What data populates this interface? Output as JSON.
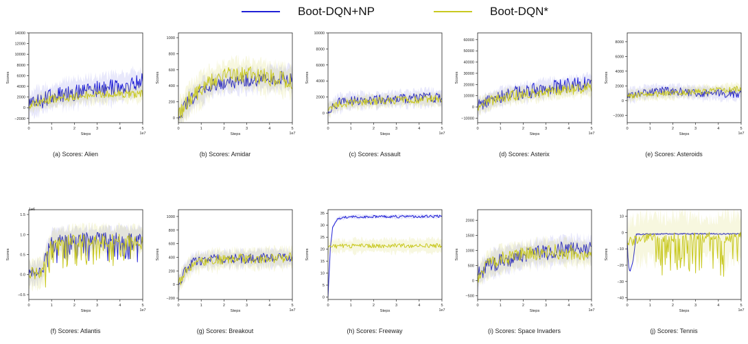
{
  "legend": {
    "np_label": "Boot-DQN+NP",
    "base_label": "Boot-DQN*",
    "np_color": "#1f1fd6",
    "base_color": "#c8c81e"
  },
  "chart_data": [
    {
      "type": "line",
      "caption": "(a) Scores: Alien",
      "xlabel": "Steps",
      "ylabel": "Scores",
      "xlim": [
        0,
        5
      ],
      "x_offset_label": "1e7",
      "y_offset_label": "",
      "ylim": [
        -2800,
        14000
      ],
      "yticks": [
        -2000,
        0,
        2000,
        4000,
        6000,
        8000,
        10000,
        12000,
        14000
      ],
      "ytick_labels": [
        "−2000",
        "0",
        "2000",
        "4000",
        "6000",
        "8000",
        "10000",
        "12000",
        "14000"
      ],
      "xticks": [
        0,
        1,
        2,
        3,
        4,
        5
      ],
      "series": [
        {
          "name": "Boot-DQN+NP",
          "x": [
            0,
            0.5,
            1,
            1.5,
            2,
            2.5,
            3,
            3.5,
            4,
            4.5,
            5
          ],
          "y": [
            400,
            1400,
            2000,
            2600,
            2900,
            3200,
            3400,
            3700,
            3900,
            4400,
            4800
          ],
          "spread": 2300,
          "noise": 1000
        },
        {
          "name": "Boot-DQN*",
          "x": [
            0,
            0.5,
            1,
            1.5,
            2,
            2.5,
            3,
            3.5,
            4,
            4.5,
            5
          ],
          "y": [
            400,
            1200,
            1600,
            1900,
            2100,
            2300,
            2400,
            2500,
            2500,
            2600,
            2700
          ],
          "spread": 1300,
          "noise": 500
        }
      ]
    },
    {
      "type": "line",
      "caption": "(b) Scores: Amidar",
      "xlabel": "Steps",
      "ylabel": "Scores",
      "xlim": [
        0,
        5
      ],
      "x_offset_label": "1e7",
      "y_offset_label": "",
      "ylim": [
        -60,
        1060
      ],
      "yticks": [
        0,
        200,
        400,
        600,
        800,
        1000
      ],
      "ytick_labels": [
        "0",
        "200",
        "400",
        "600",
        "800",
        "1000"
      ],
      "xticks": [
        0,
        1,
        2,
        3,
        4,
        5
      ],
      "series": [
        {
          "name": "Boot-DQN+NP",
          "x": [
            0,
            0.5,
            1,
            1.5,
            2,
            2.5,
            3,
            3.5,
            4,
            4.5,
            5
          ],
          "y": [
            10,
            220,
            330,
            410,
            440,
            460,
            470,
            480,
            490,
            500,
            500
          ],
          "spread": 130,
          "noise": 55
        },
        {
          "name": "Boot-DQN*",
          "x": [
            0,
            0.5,
            1,
            1.5,
            2,
            2.5,
            3,
            3.5,
            4,
            4.5,
            5
          ],
          "y": [
            10,
            250,
            360,
            460,
            520,
            550,
            540,
            520,
            500,
            480,
            460
          ],
          "spread": 170,
          "noise": 65
        }
      ]
    },
    {
      "type": "line",
      "caption": "(c) Scores: Assault",
      "xlabel": "Steps",
      "ylabel": "Scores",
      "xlim": [
        0,
        5
      ],
      "x_offset_label": "1e7",
      "y_offset_label": "",
      "ylim": [
        -1200,
        10000
      ],
      "yticks": [
        0,
        2000,
        4000,
        6000,
        8000,
        10000
      ],
      "ytick_labels": [
        "0",
        "2000",
        "4000",
        "6000",
        "8000",
        "10000"
      ],
      "xticks": [
        0,
        1,
        2,
        3,
        4,
        5
      ],
      "series": [
        {
          "name": "Boot-DQN+NP",
          "x": [
            0,
            0.5,
            1,
            1.5,
            2,
            2.5,
            3,
            3.5,
            4,
            4.5,
            5
          ],
          "y": [
            500,
            1300,
            1500,
            1600,
            1600,
            1700,
            1800,
            1800,
            1900,
            2000,
            1800
          ],
          "spread": 900,
          "noise": 380
        },
        {
          "name": "Boot-DQN*",
          "x": [
            0,
            0.5,
            1,
            1.5,
            2,
            2.5,
            3,
            3.5,
            4,
            4.5,
            5
          ],
          "y": [
            400,
            1100,
            1300,
            1400,
            1500,
            1500,
            1600,
            1600,
            1700,
            1700,
            1700
          ],
          "spread": 700,
          "noise": 300
        }
      ]
    },
    {
      "type": "line",
      "caption": "(d) Scores: Asterix",
      "xlabel": "Steps",
      "ylabel": "Scores",
      "xlim": [
        0,
        5
      ],
      "x_offset_label": "1e7",
      "y_offset_label": "",
      "ylim": [
        -14000,
        66000
      ],
      "yticks": [
        -10000,
        0,
        10000,
        20000,
        30000,
        40000,
        50000,
        60000
      ],
      "ytick_labels": [
        "−10000",
        "0",
        "10000",
        "20000",
        "30000",
        "40000",
        "50000",
        "60000"
      ],
      "xticks": [
        0,
        1,
        2,
        3,
        4,
        5
      ],
      "series": [
        {
          "name": "Boot-DQN+NP",
          "x": [
            0,
            0.5,
            1,
            1.5,
            2,
            2.5,
            3,
            3.5,
            4,
            4.5,
            5
          ],
          "y": [
            500,
            5000,
            9000,
            12000,
            13000,
            15000,
            17000,
            18000,
            19000,
            20000,
            22000
          ],
          "spread": 7000,
          "noise": 4000
        },
        {
          "name": "Boot-DQN*",
          "x": [
            0,
            0.5,
            1,
            1.5,
            2,
            2.5,
            3,
            3.5,
            4,
            4.5,
            5
          ],
          "y": [
            500,
            4500,
            8000,
            10000,
            11000,
            12000,
            13000,
            14000,
            15000,
            16000,
            17000
          ],
          "spread": 6000,
          "noise": 3000
        }
      ]
    },
    {
      "type": "line",
      "caption": "(e) Scores: Asteroids",
      "xlabel": "Steps",
      "ylabel": "Scores",
      "xlim": [
        0,
        5
      ],
      "x_offset_label": "1e7",
      "y_offset_label": "",
      "ylim": [
        -3000,
        9200
      ],
      "yticks": [
        -2000,
        0,
        2000,
        4000,
        6000,
        8000
      ],
      "ytick_labels": [
        "−2000",
        "0",
        "2000",
        "4000",
        "6000",
        "8000"
      ],
      "xticks": [
        0,
        1,
        2,
        3,
        4,
        5
      ],
      "series": [
        {
          "name": "Boot-DQN+NP",
          "x": [
            0,
            0.5,
            1,
            1.5,
            2,
            2.5,
            3,
            3.5,
            4,
            4.5,
            5
          ],
          "y": [
            700,
            1000,
            1200,
            1300,
            1300,
            1200,
            1100,
            1000,
            1000,
            900,
            900
          ],
          "spread": 800,
          "noise": 350
        },
        {
          "name": "Boot-DQN*",
          "x": [
            0,
            0.5,
            1,
            1.5,
            2,
            2.5,
            3,
            3.5,
            4,
            4.5,
            5
          ],
          "y": [
            600,
            800,
            900,
            900,
            1000,
            1100,
            1200,
            1300,
            1400,
            1500,
            1600
          ],
          "spread": 700,
          "noise": 260
        }
      ]
    },
    {
      "type": "line",
      "caption": "(f) Scores: Atlantis",
      "xlabel": "Steps",
      "ylabel": "Scores",
      "xlim": [
        0,
        5
      ],
      "x_offset_label": "1e7",
      "y_offset_label": "1e6",
      "ylim": [
        -0.62,
        1.62
      ],
      "yticks": [
        -0.5,
        0.0,
        0.5,
        1.0,
        1.5
      ],
      "ytick_labels": [
        "−0.5",
        "0.0",
        "0.5",
        "1.0",
        "1.5"
      ],
      "xticks": [
        0,
        1,
        2,
        3,
        4,
        5
      ],
      "series": [
        {
          "name": "Boot-DQN+NP",
          "x": [
            0,
            0.3,
            0.6,
            0.8,
            1,
            1.5,
            2,
            3,
            4,
            5
          ],
          "y": [
            0.02,
            0.04,
            0.1,
            0.6,
            0.82,
            0.88,
            0.9,
            0.9,
            0.9,
            0.9
          ],
          "spread": 0.25,
          "noise": 0.1,
          "dips": 0.5
        },
        {
          "name": "Boot-DQN*",
          "x": [
            0,
            0.3,
            0.6,
            0.8,
            1,
            1.5,
            2,
            3,
            4,
            5
          ],
          "y": [
            0.02,
            0.03,
            0.08,
            0.45,
            0.75,
            0.82,
            0.85,
            0.86,
            0.86,
            0.86
          ],
          "spread": 0.3,
          "noise": 0.1,
          "dips": 0.55
        }
      ]
    },
    {
      "type": "line",
      "caption": "(g) Scores: Breakout",
      "xlabel": "Steps",
      "ylabel": "Scores",
      "xlim": [
        0,
        5
      ],
      "x_offset_label": "1e7",
      "y_offset_label": "",
      "ylim": [
        -220,
        1100
      ],
      "yticks": [
        -200,
        0,
        200,
        400,
        600,
        800,
        1000
      ],
      "ytick_labels": [
        "−200",
        "0",
        "200",
        "400",
        "600",
        "800",
        "1000"
      ],
      "xticks": [
        0,
        1,
        2,
        3,
        4,
        5
      ],
      "series": [
        {
          "name": "Boot-DQN+NP",
          "x": [
            0,
            0.3,
            0.6,
            1,
            1.5,
            2,
            2.5,
            3,
            3.5,
            4,
            4.5,
            5
          ],
          "y": [
            0,
            200,
            320,
            360,
            370,
            380,
            380,
            380,
            390,
            390,
            390,
            390
          ],
          "spread": 110,
          "noise": 45
        },
        {
          "name": "Boot-DQN*",
          "x": [
            0,
            0.3,
            0.6,
            1,
            1.5,
            2,
            2.5,
            3,
            3.5,
            4,
            4.5,
            5
          ],
          "y": [
            0,
            180,
            300,
            340,
            360,
            370,
            380,
            380,
            380,
            390,
            390,
            400
          ],
          "spread": 130,
          "noise": 45
        }
      ]
    },
    {
      "type": "line",
      "caption": "(h) Scores: Freeway",
      "xlabel": "Steps",
      "ylabel": "Scores",
      "xlim": [
        0,
        5
      ],
      "x_offset_label": "1e7",
      "y_offset_label": "",
      "ylim": [
        -1,
        36.5
      ],
      "yticks": [
        0,
        5,
        10,
        15,
        20,
        25,
        30,
        35
      ],
      "ytick_labels": [
        "0",
        "5",
        "10",
        "15",
        "20",
        "25",
        "30",
        "35"
      ],
      "xticks": [
        0,
        1,
        2,
        3,
        4,
        5
      ],
      "series": [
        {
          "name": "Boot-DQN+NP",
          "x": [
            0,
            0.1,
            0.2,
            0.35,
            0.5,
            1,
            2,
            3,
            4,
            5
          ],
          "y": [
            0,
            20,
            29,
            32,
            33,
            33.5,
            33.6,
            33.6,
            33.7,
            33.7
          ],
          "spread": 0.8,
          "noise": 0.35
        },
        {
          "name": "Boot-DQN*",
          "x": [
            0,
            0.1,
            0.2,
            0.5,
            1,
            2,
            3,
            4,
            5
          ],
          "y": [
            21,
            21,
            21.2,
            21.3,
            21.4,
            21.5,
            21.5,
            21.5,
            21.5
          ],
          "spread": 2.5,
          "noise": 0.6
        }
      ]
    },
    {
      "type": "line",
      "caption": "(i) Scores: Space Invaders",
      "xlabel": "Steps",
      "ylabel": "Scores",
      "xlim": [
        0,
        5
      ],
      "x_offset_label": "1e7",
      "y_offset_label": "",
      "ylim": [
        -620,
        2350
      ],
      "yticks": [
        -500,
        0,
        500,
        1000,
        1500,
        2000
      ],
      "ytick_labels": [
        "−500",
        "0",
        "500",
        "1000",
        "1500",
        "2000"
      ],
      "xticks": [
        0,
        1,
        2,
        3,
        4,
        5
      ],
      "series": [
        {
          "name": "Boot-DQN+NP",
          "x": [
            0,
            0.5,
            1,
            1.5,
            2,
            2.5,
            3,
            3.5,
            4,
            4.5,
            5
          ],
          "y": [
            150,
            500,
            650,
            750,
            800,
            900,
            950,
            1000,
            1050,
            1050,
            1000
          ],
          "spread": 380,
          "noise": 170
        },
        {
          "name": "Boot-DQN*",
          "x": [
            0,
            0.5,
            1,
            1.5,
            2,
            2.5,
            3,
            3.5,
            4,
            4.5,
            5
          ],
          "y": [
            150,
            550,
            700,
            800,
            850,
            900,
            950,
            950,
            950,
            900,
            900
          ],
          "spread": 380,
          "noise": 160
        }
      ]
    },
    {
      "type": "line",
      "caption": "(j) Scores: Tennis",
      "xlabel": "Steps",
      "ylabel": "Scores",
      "xlim": [
        0,
        5
      ],
      "x_offset_label": "1e7",
      "y_offset_label": "",
      "ylim": [
        -41,
        14
      ],
      "yticks": [
        -40,
        -30,
        -20,
        -10,
        0,
        10
      ],
      "ytick_labels": [
        "−40",
        "−30",
        "−20",
        "−10",
        "0",
        "10"
      ],
      "xticks": [
        0,
        1,
        2,
        3,
        4,
        5
      ],
      "series": [
        {
          "name": "Boot-DQN+NP",
          "x": [
            0,
            0.05,
            0.12,
            0.25,
            0.4,
            1,
            2,
            3,
            4,
            5
          ],
          "y": [
            -5,
            -20,
            -24,
            -18,
            -1,
            -1,
            -0.8,
            -0.8,
            -0.8,
            -0.8
          ],
          "spread": 0.6,
          "noise": 0.25
        },
        {
          "name": "Boot-DQN*",
          "x": [
            0,
            0.2,
            0.5,
            1,
            2,
            3,
            4,
            5
          ],
          "y": [
            -8,
            -5,
            -4,
            -3,
            -3,
            -3,
            -3,
            -3
          ],
          "spread": 12,
          "noise": 2,
          "dips": 20
        }
      ]
    }
  ]
}
